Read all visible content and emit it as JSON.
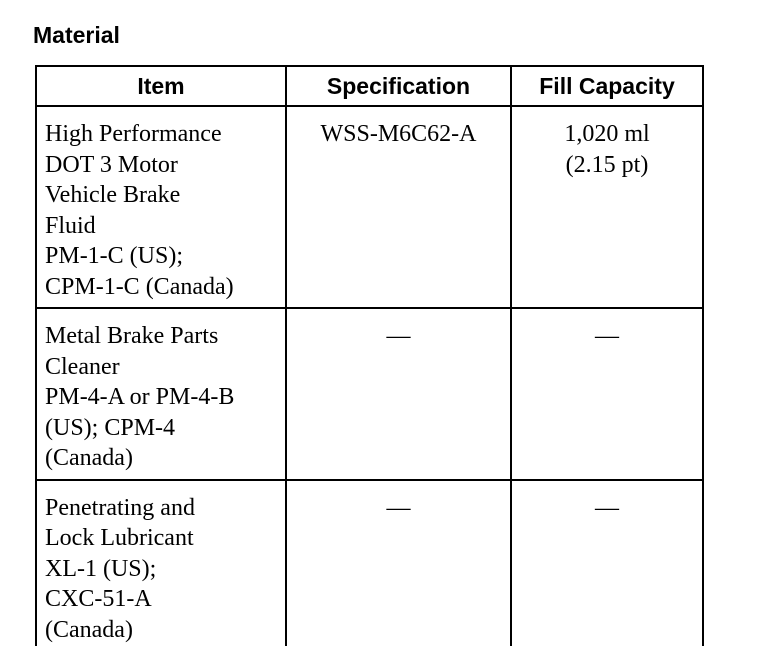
{
  "title": "Material",
  "table": {
    "header": [
      "Item",
      "Specification",
      "Fill Capacity"
    ],
    "rows": [
      [
        [
          "High Performance",
          "DOT 3 Motor",
          "Vehicle Brake",
          "Fluid",
          "PM-1-C (US);",
          "CPM-1-C (Canada)"
        ],
        [
          "WSS-M6C62-A"
        ],
        [
          "1,020 ml",
          "(2.15 pt)"
        ]
      ],
      [
        [
          "Metal Brake Parts",
          "Cleaner",
          "PM-4-A or PM-4-B",
          "(US); CPM-4",
          "(Canada)"
        ],
        [
          "—"
        ],
        [
          "—"
        ]
      ],
      [
        [
          "Penetrating and",
          "Lock Lubricant",
          "XL-1 (US);",
          "CXC-51-A",
          "(Canada)"
        ],
        [
          "—"
        ],
        [
          "—"
        ]
      ]
    ]
  }
}
